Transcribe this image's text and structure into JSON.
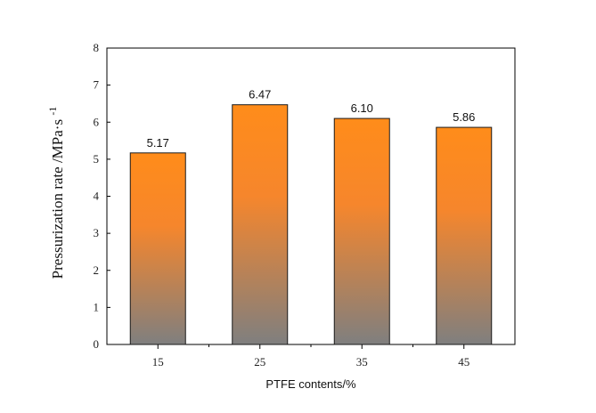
{
  "chart_data": {
    "type": "bar",
    "categories": [
      "15",
      "25",
      "35",
      "45"
    ],
    "values": [
      5.17,
      6.47,
      6.1,
      5.86
    ],
    "data_labels": [
      "5.17",
      "6.47",
      "6.10",
      "5.86"
    ],
    "title": "",
    "xlabel": "PTFE contents/%",
    "ylabel": "Pressurization rate /MPa·s",
    "ylabel_superscript": "-1",
    "ylim": [
      0,
      8
    ],
    "yticks": [
      "0",
      "1",
      "2",
      "3",
      "4",
      "5",
      "6",
      "7",
      "8"
    ],
    "grid": false,
    "legend": "none",
    "colors": {
      "bar_top": "#ff8c1a",
      "bar_bottom": "#7f7f7f",
      "bar_stroke": "#1a1a1a",
      "axis": "#000000"
    }
  }
}
